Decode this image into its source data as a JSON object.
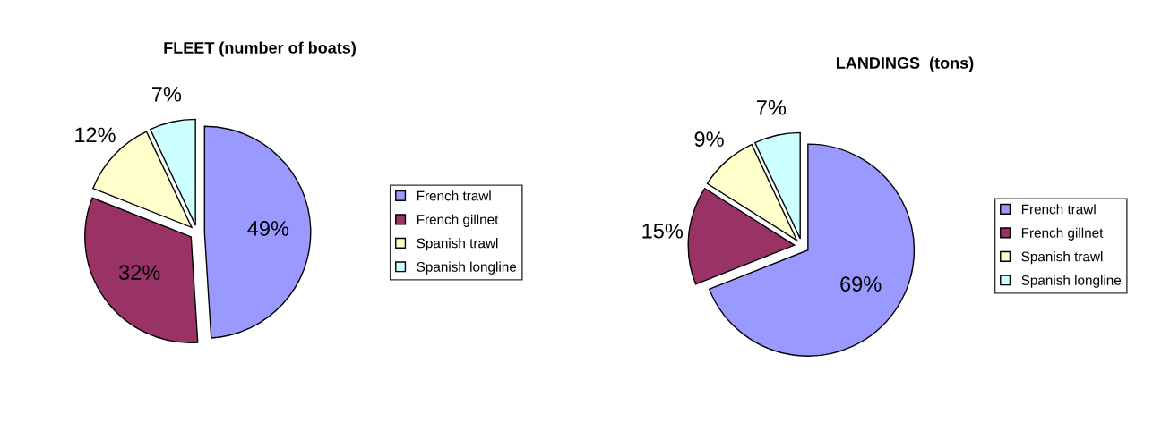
{
  "chart_data": [
    {
      "type": "pie",
      "title": "FLEET (number of boats)",
      "categories": [
        "French trawl",
        "French gillnet",
        "Spanish trawl",
        "Spanish longline"
      ],
      "values": [
        49,
        32,
        12,
        7
      ],
      "value_labels": [
        "49%",
        "32%",
        "12%",
        "7%"
      ],
      "colors": [
        "#9999ff",
        "#993366",
        "#ffffcc",
        "#ccffff"
      ],
      "legend": "right"
    },
    {
      "type": "pie",
      "title": "LANDINGS  (tons)",
      "categories": [
        "French trawl",
        "French gillnet",
        "Spanish trawl",
        "Spanish longline"
      ],
      "values": [
        69,
        15,
        9,
        7
      ],
      "value_labels": [
        "69%",
        "15%",
        "9%",
        "7%"
      ],
      "colors": [
        "#9999ff",
        "#993366",
        "#ffffcc",
        "#ccffff"
      ],
      "legend": "right"
    }
  ]
}
